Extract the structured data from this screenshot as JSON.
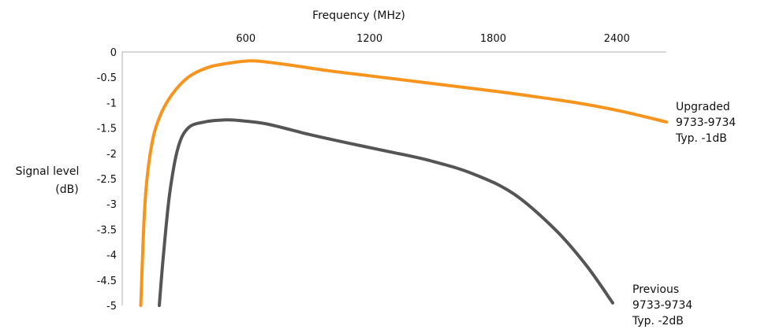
{
  "chart_data": {
    "type": "line",
    "title": "",
    "xlabel": "Frequency (MHz)",
    "ylabel_lines": [
      "Signal level",
      "(dB)"
    ],
    "xlim": [
      0,
      2640
    ],
    "ylim": [
      -5,
      0
    ],
    "x_axis_position": "top",
    "x_ticks": [
      600,
      1200,
      1800,
      2400
    ],
    "x_tick_labels": [
      "600",
      "1200",
      "1800",
      "2400"
    ],
    "y_ticks": [
      0,
      -0.5,
      -1,
      -1.5,
      -2,
      -2.5,
      -3,
      -3.5,
      -4,
      -4.5,
      -5
    ],
    "y_tick_labels": [
      "0",
      "-0.5",
      "-1",
      "-1.5",
      "-2",
      "-2.5",
      "-3",
      "-3.5",
      "-4",
      "-4.5",
      "-5"
    ],
    "grid": false,
    "legend": "none (labels at right end of each line)",
    "series": [
      {
        "name": "Upgraded 9733-9734",
        "label_lines": [
          "Upgraded",
          "9733-9734",
          "Typ. -1dB"
        ],
        "color": "#f7941d",
        "x": [
          90,
          110,
          140,
          180,
          240,
          320,
          420,
          520,
          600,
          660,
          800,
          1000,
          1200,
          1400,
          1600,
          1800,
          2000,
          2200,
          2400,
          2640
        ],
        "y": [
          -5,
          -3.0,
          -1.9,
          -1.3,
          -0.85,
          -0.5,
          -0.3,
          -0.22,
          -0.18,
          -0.18,
          -0.25,
          -0.37,
          -0.47,
          -0.57,
          -0.67,
          -0.77,
          -0.88,
          -1.0,
          -1.15,
          -1.38
        ]
      },
      {
        "name": "Previous 9733-9734",
        "label_lines": [
          "Previous",
          "9733-9734",
          "Typ. -2dB"
        ],
        "color": "#555555",
        "x": [
          180,
          200,
          230,
          270,
          320,
          400,
          500,
          560,
          700,
          900,
          1100,
          1300,
          1500,
          1700,
          1900,
          2100,
          2250,
          2380
        ],
        "y": [
          -5,
          -4.0,
          -2.8,
          -1.9,
          -1.5,
          -1.38,
          -1.34,
          -1.35,
          -1.42,
          -1.62,
          -1.8,
          -1.97,
          -2.15,
          -2.4,
          -2.8,
          -3.5,
          -4.2,
          -4.95
        ]
      }
    ]
  }
}
